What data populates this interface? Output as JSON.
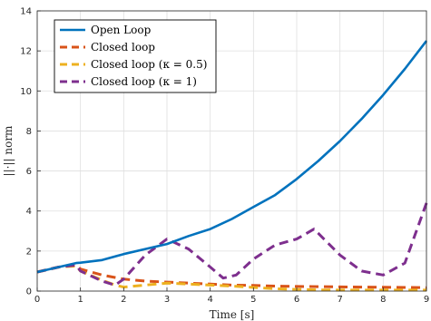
{
  "chart_data": {
    "type": "line",
    "xlabel": "Time [s]",
    "ylabel": "||·|| norm",
    "xlim": [
      0,
      9
    ],
    "ylim": [
      0,
      14
    ],
    "x_ticks": [
      "0",
      "1",
      "2",
      "3",
      "4",
      "5",
      "6",
      "7",
      "8",
      "9"
    ],
    "y_ticks": [
      "0",
      "2",
      "4",
      "6",
      "8",
      "10",
      "12",
      "14"
    ],
    "grid": true,
    "legend_position": "top-left",
    "series": [
      {
        "name": "Open Loop",
        "color": "#0072BD",
        "dash": "solid",
        "x": [
          0,
          0.5,
          0.9,
          1.0,
          1.5,
          2.0,
          2.5,
          3.0,
          3.5,
          4.0,
          4.5,
          5.0,
          5.5,
          6.0,
          6.5,
          7.0,
          7.5,
          8.0,
          8.5,
          9.0
        ],
        "y": [
          0.95,
          1.2,
          1.4,
          1.42,
          1.55,
          1.85,
          2.1,
          2.35,
          2.75,
          3.1,
          3.6,
          4.2,
          4.8,
          5.6,
          6.5,
          7.5,
          8.6,
          9.8,
          11.1,
          12.5
        ]
      },
      {
        "name": "Closed loop",
        "color": "#D95319",
        "dash": "dashed",
        "x": [
          0,
          0.5,
          0.9,
          1.0,
          1.5,
          2.0,
          2.5,
          3.0,
          3.5,
          4.0,
          4.5,
          5.0,
          5.5,
          6.0,
          6.5,
          7.0,
          7.5,
          8.0,
          8.5,
          9.0
        ],
        "y": [
          0.95,
          1.2,
          1.3,
          1.1,
          0.8,
          0.6,
          0.5,
          0.45,
          0.4,
          0.35,
          0.3,
          0.28,
          0.25,
          0.23,
          0.22,
          0.21,
          0.2,
          0.19,
          0.18,
          0.17
        ]
      },
      {
        "name": "Closed loop (κ = 0.5)",
        "color": "#EDB120",
        "dash": "dashed",
        "x": [
          0,
          0.5,
          0.9,
          1.0,
          1.5,
          1.8,
          2.0,
          2.5,
          3.0,
          3.5,
          4.0,
          4.5,
          5.0,
          5.5,
          6.0,
          6.5,
          7.0,
          7.5,
          8.0,
          8.5,
          9.0
        ],
        "y": [
          0.95,
          1.2,
          1.25,
          1.0,
          0.55,
          0.3,
          0.2,
          0.3,
          0.4,
          0.35,
          0.3,
          0.25,
          0.18,
          0.12,
          0.08,
          0.06,
          0.05,
          0.05,
          0.05,
          0.05,
          0.05
        ]
      },
      {
        "name": "Closed loop (κ = 1)",
        "color": "#7E2F8E",
        "dash": "dashed",
        "x": [
          0,
          0.5,
          0.9,
          1.0,
          1.5,
          1.8,
          2.0,
          2.5,
          3.0,
          3.5,
          4.0,
          4.3,
          4.6,
          5.0,
          5.5,
          6.0,
          6.4,
          7.0,
          7.5,
          8.0,
          8.5,
          9.0
        ],
        "y": [
          0.95,
          1.2,
          1.3,
          1.0,
          0.5,
          0.3,
          0.6,
          1.8,
          2.6,
          2.1,
          1.2,
          0.65,
          0.8,
          1.6,
          2.3,
          2.6,
          3.1,
          1.8,
          1.0,
          0.8,
          1.4,
          4.4
        ]
      }
    ]
  }
}
